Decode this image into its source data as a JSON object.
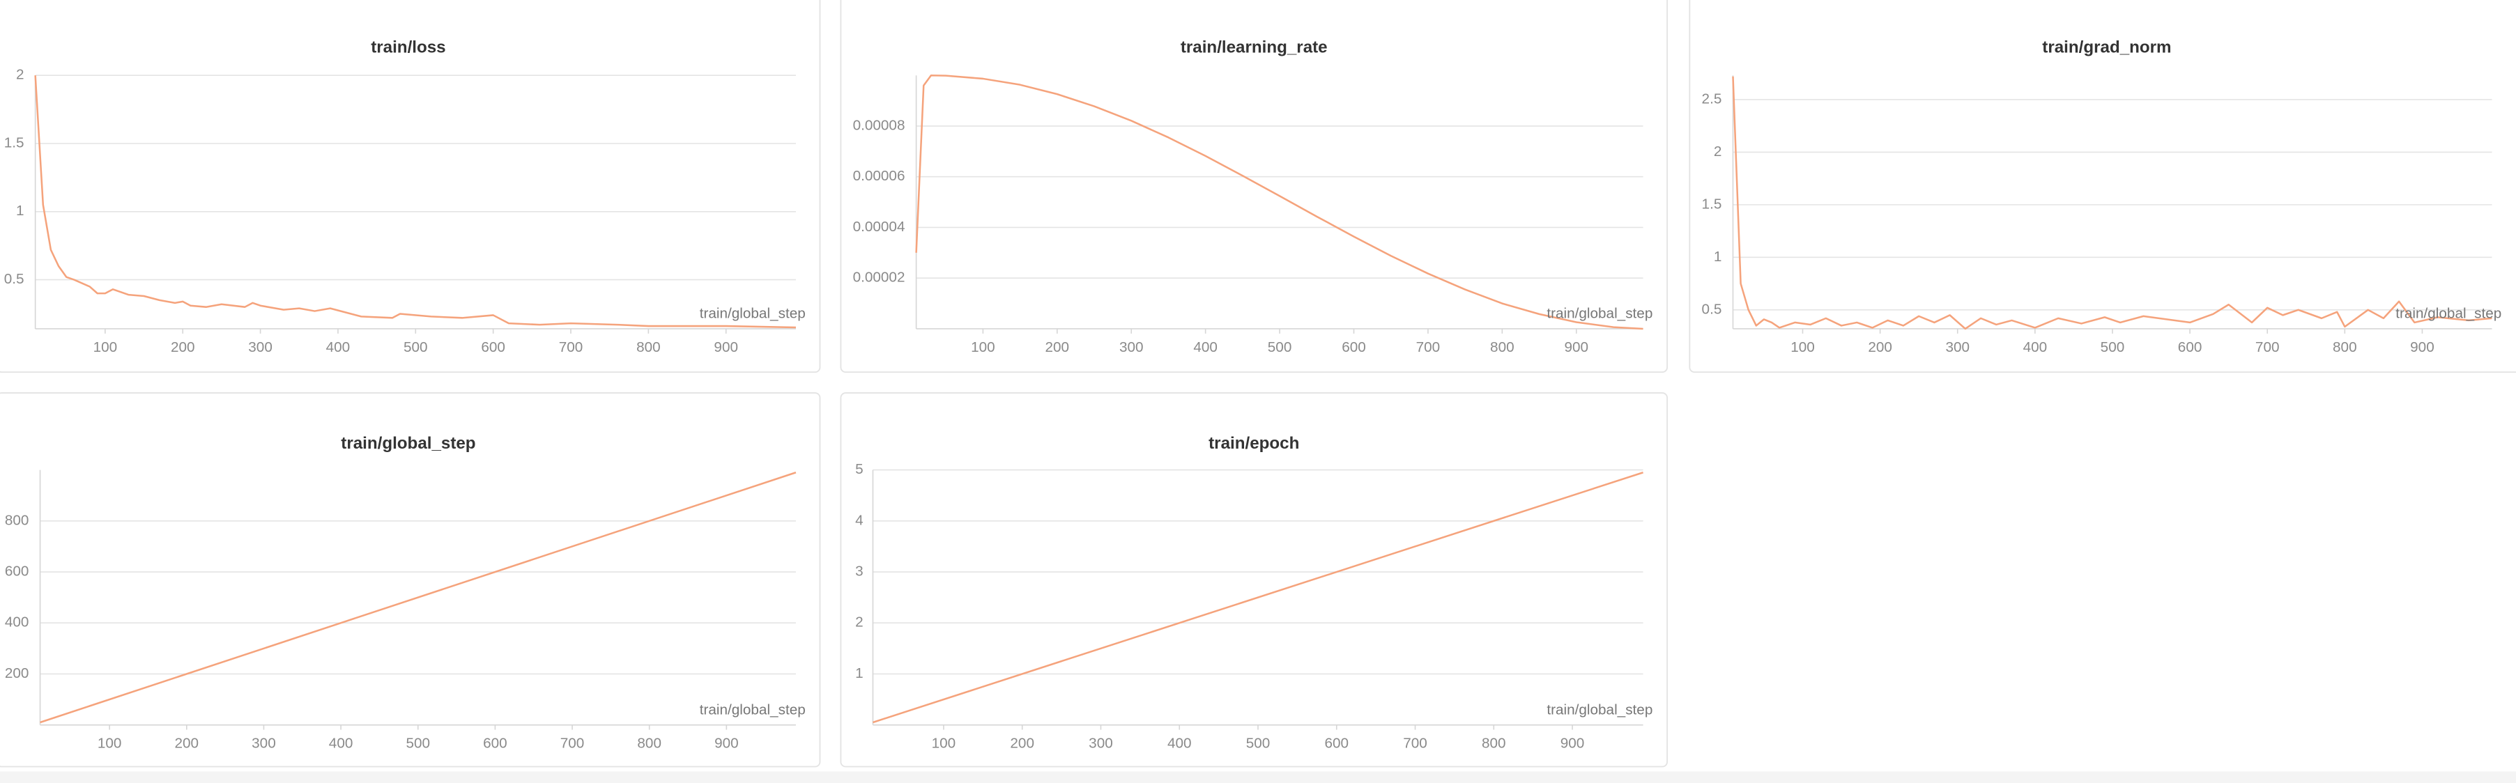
{
  "chart_data": [
    {
      "type": "line",
      "title": "train/loss",
      "xlabel": "train/global_step",
      "color": "#f5a37c",
      "x": [
        10,
        20,
        30,
        40,
        50,
        60,
        80,
        90,
        100,
        110,
        130,
        150,
        170,
        190,
        200,
        210,
        230,
        250,
        280,
        290,
        300,
        330,
        350,
        370,
        390,
        410,
        430,
        470,
        480,
        520,
        560,
        600,
        620,
        660,
        700,
        760,
        800,
        850,
        900,
        990
      ],
      "values": [
        2.0,
        1.05,
        0.72,
        0.6,
        0.52,
        0.5,
        0.45,
        0.4,
        0.4,
        0.43,
        0.39,
        0.38,
        0.35,
        0.33,
        0.34,
        0.31,
        0.3,
        0.32,
        0.3,
        0.33,
        0.31,
        0.28,
        0.29,
        0.27,
        0.29,
        0.26,
        0.23,
        0.22,
        0.25,
        0.23,
        0.22,
        0.24,
        0.18,
        0.17,
        0.18,
        0.17,
        0.16,
        0.16,
        0.16,
        0.15
      ],
      "xlim": [
        10,
        990
      ],
      "ylim": [
        0.14,
        2
      ],
      "xticks": [
        100,
        200,
        300,
        400,
        500,
        600,
        700,
        800,
        900
      ],
      "yticks": [
        0.5,
        1,
        1.5,
        2
      ],
      "grid": true
    },
    {
      "type": "line",
      "title": "train/learning_rate",
      "xlabel": "train/global_step",
      "color": "#f5a37c",
      "x": [
        10,
        20,
        30,
        50,
        100,
        150,
        200,
        250,
        300,
        350,
        400,
        450,
        500,
        550,
        600,
        650,
        700,
        750,
        800,
        850,
        900,
        950,
        990
      ],
      "values": [
        3e-05,
        9.6e-05,
        0.0001,
        9.99e-05,
        9.87e-05,
        9.63e-05,
        9.26e-05,
        8.78e-05,
        8.21e-05,
        7.55e-05,
        6.82e-05,
        6.04e-05,
        5.24e-05,
        4.43e-05,
        3.64e-05,
        2.88e-05,
        2.18e-05,
        1.55e-05,
        1e-05,
        5.8e-06,
        2.6e-06,
        6.5e-07,
        0
      ],
      "xlim": [
        10,
        990
      ],
      "ylim": [
        0,
        0.0001
      ],
      "xticks": [
        100,
        200,
        300,
        400,
        500,
        600,
        700,
        800,
        900
      ],
      "yticks": [
        2e-05,
        4e-05,
        6e-05,
        8e-05
      ],
      "grid": true
    },
    {
      "type": "line",
      "title": "train/grad_norm",
      "xlabel": "train/global_step",
      "color": "#f5a37c",
      "x": [
        10,
        20,
        30,
        40,
        50,
        60,
        70,
        90,
        110,
        130,
        150,
        170,
        190,
        210,
        230,
        250,
        270,
        290,
        310,
        330,
        350,
        370,
        400,
        430,
        460,
        490,
        510,
        540,
        570,
        600,
        630,
        650,
        680,
        700,
        720,
        740,
        770,
        790,
        800,
        830,
        850,
        870,
        890,
        920,
        960,
        990
      ],
      "values": [
        2.72,
        0.75,
        0.5,
        0.35,
        0.41,
        0.38,
        0.33,
        0.38,
        0.36,
        0.42,
        0.35,
        0.38,
        0.33,
        0.4,
        0.35,
        0.44,
        0.38,
        0.45,
        0.32,
        0.42,
        0.36,
        0.4,
        0.33,
        0.42,
        0.37,
        0.43,
        0.38,
        0.44,
        0.41,
        0.38,
        0.46,
        0.55,
        0.38,
        0.52,
        0.45,
        0.5,
        0.42,
        0.48,
        0.34,
        0.5,
        0.42,
        0.58,
        0.38,
        0.43,
        0.4,
        0.42
      ],
      "xlim": [
        10,
        990
      ],
      "ylim": [
        0.32,
        2.73
      ],
      "xticks": [
        100,
        200,
        300,
        400,
        500,
        600,
        700,
        800,
        900
      ],
      "yticks": [
        0.5,
        1,
        1.5,
        2,
        2.5
      ],
      "grid": true
    },
    {
      "type": "line",
      "title": "train/global_step",
      "xlabel": "train/global_step",
      "color": "#f5a37c",
      "x": [
        10,
        990
      ],
      "values": [
        10,
        990
      ],
      "xlim": [
        10,
        990
      ],
      "ylim": [
        0,
        1000
      ],
      "xticks": [
        100,
        200,
        300,
        400,
        500,
        600,
        700,
        800,
        900
      ],
      "yticks": [
        200,
        400,
        600,
        800
      ],
      "grid": true
    },
    {
      "type": "line",
      "title": "train/epoch",
      "xlabel": "train/global_step",
      "color": "#f5a37c",
      "x": [
        10,
        990
      ],
      "values": [
        0.05,
        4.95
      ],
      "xlim": [
        10,
        990
      ],
      "ylim": [
        0,
        5
      ],
      "xticks": [
        100,
        200,
        300,
        400,
        500,
        600,
        700,
        800,
        900
      ],
      "yticks": [
        1,
        2,
        3,
        4,
        5
      ],
      "grid": true
    }
  ]
}
